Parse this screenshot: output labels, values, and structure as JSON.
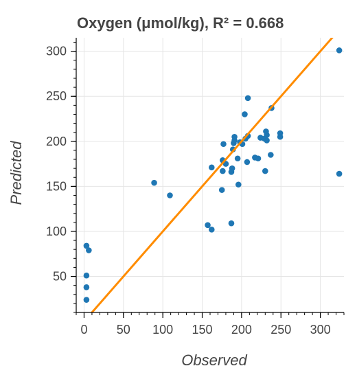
{
  "chart_data": {
    "type": "scatter",
    "title": "Oxygen (μmol/kg), R² = 0.668",
    "xlabel": "Observed",
    "ylabel": "Predicted",
    "xlim": [
      -10,
      330
    ],
    "ylim": [
      10,
      315
    ],
    "xticks": [
      0,
      50,
      100,
      150,
      200,
      250,
      300
    ],
    "yticks": [
      50,
      100,
      150,
      200,
      250,
      300
    ],
    "grid": true,
    "point_color": "#1f77b4",
    "fit_color": "#ff8c00",
    "fit_line": {
      "slope": 1.0,
      "intercept": 0.0
    },
    "points": [
      {
        "x": 3,
        "y": 84
      },
      {
        "x": 6,
        "y": 79
      },
      {
        "x": 3,
        "y": 51
      },
      {
        "x": 3,
        "y": 38
      },
      {
        "x": 3,
        "y": 24
      },
      {
        "x": 89,
        "y": 154
      },
      {
        "x": 109,
        "y": 140
      },
      {
        "x": 157,
        "y": 107
      },
      {
        "x": 162,
        "y": 102
      },
      {
        "x": 162,
        "y": 171
      },
      {
        "x": 175,
        "y": 146
      },
      {
        "x": 176,
        "y": 167
      },
      {
        "x": 176,
        "y": 179
      },
      {
        "x": 177,
        "y": 197
      },
      {
        "x": 180,
        "y": 175
      },
      {
        "x": 187,
        "y": 109
      },
      {
        "x": 187,
        "y": 166
      },
      {
        "x": 188,
        "y": 170
      },
      {
        "x": 189,
        "y": 191
      },
      {
        "x": 190,
        "y": 198
      },
      {
        "x": 191,
        "y": 201
      },
      {
        "x": 191,
        "y": 205
      },
      {
        "x": 195,
        "y": 181
      },
      {
        "x": 196,
        "y": 152
      },
      {
        "x": 198,
        "y": 199
      },
      {
        "x": 201,
        "y": 197
      },
      {
        "x": 204,
        "y": 230
      },
      {
        "x": 205,
        "y": 203
      },
      {
        "x": 207,
        "y": 177
      },
      {
        "x": 208,
        "y": 206
      },
      {
        "x": 208,
        "y": 248
      },
      {
        "x": 217,
        "y": 182
      },
      {
        "x": 221,
        "y": 181
      },
      {
        "x": 224,
        "y": 204
      },
      {
        "x": 229,
        "y": 203
      },
      {
        "x": 230,
        "y": 167
      },
      {
        "x": 231,
        "y": 211
      },
      {
        "x": 232,
        "y": 207
      },
      {
        "x": 232,
        "y": 201
      },
      {
        "x": 237,
        "y": 185
      },
      {
        "x": 238,
        "y": 237
      },
      {
        "x": 249,
        "y": 209
      },
      {
        "x": 249,
        "y": 205
      },
      {
        "x": 324,
        "y": 301
      },
      {
        "x": 324,
        "y": 164
      }
    ]
  }
}
